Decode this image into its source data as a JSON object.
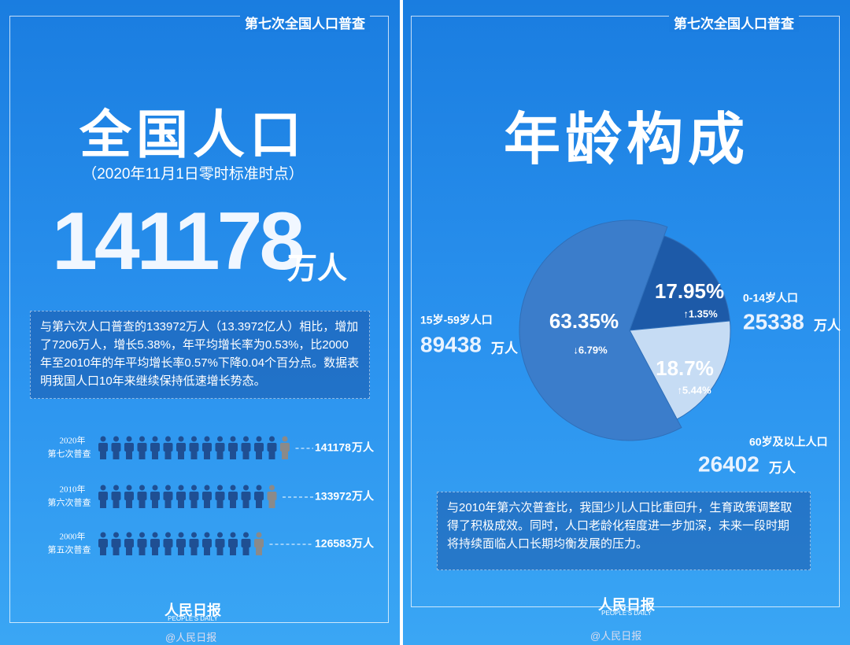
{
  "left": {
    "header": "第七次全国人口普查",
    "title": "全国人口",
    "subtitle": "（2020年11月1日零时标准时点）",
    "total": "141178",
    "total_unit": "万人",
    "paragraph": "与第六次人口普查的133972万人（13.3972亿人）相比，增加了7206万人，增长5.38%，年平均增长率为0.53%，比2000年至2010年的年平均增长率0.57%下降0.04个百分点。数据表明我国人口10年来继续保持低速增长势态。",
    "rows": [
      {
        "year": "2020年",
        "census": "第七次普查",
        "value": 141178,
        "unit": "万人"
      },
      {
        "year": "2010年",
        "census": "第六次普查",
        "value": 133972,
        "unit": "万人"
      },
      {
        "year": "2000年",
        "census": "第五次普查",
        "value": 126583,
        "unit": "万人"
      }
    ],
    "logo": "人民日报",
    "logo_en": "PEOPLE'S DAILY",
    "watermark": "@人民日报"
  },
  "right": {
    "header": "第七次全国人口普查",
    "title": "年龄构成",
    "paragraph": "与2010年第六次普查比，我国少儿人口比重回升，生育政策调整取得了积极成效。同时，人口老龄化程度进一步加深，未来一段时期将持续面临人口长期均衡发展的压力。",
    "logo": "人民日报",
    "logo_en": "PEOPLE'S DAILY",
    "watermark": "@人民日报"
  },
  "chart_data": {
    "type": "pie",
    "categories": [
      "0-14岁人口",
      "60岁及以上人口",
      "15岁-59岁人口"
    ],
    "values": [
      17.95,
      18.7,
      63.35
    ],
    "value_labels": [
      "17.95%",
      "18.7%",
      "63.35%"
    ],
    "changes": [
      "↑1.35%",
      "↑5.44%",
      "↓6.79%"
    ],
    "populations": [
      "25338",
      "26402",
      "89438"
    ],
    "population_unit": "万人",
    "colors": [
      "#1d5aa8",
      "#c6dcf4",
      "#3b7dcb"
    ]
  }
}
